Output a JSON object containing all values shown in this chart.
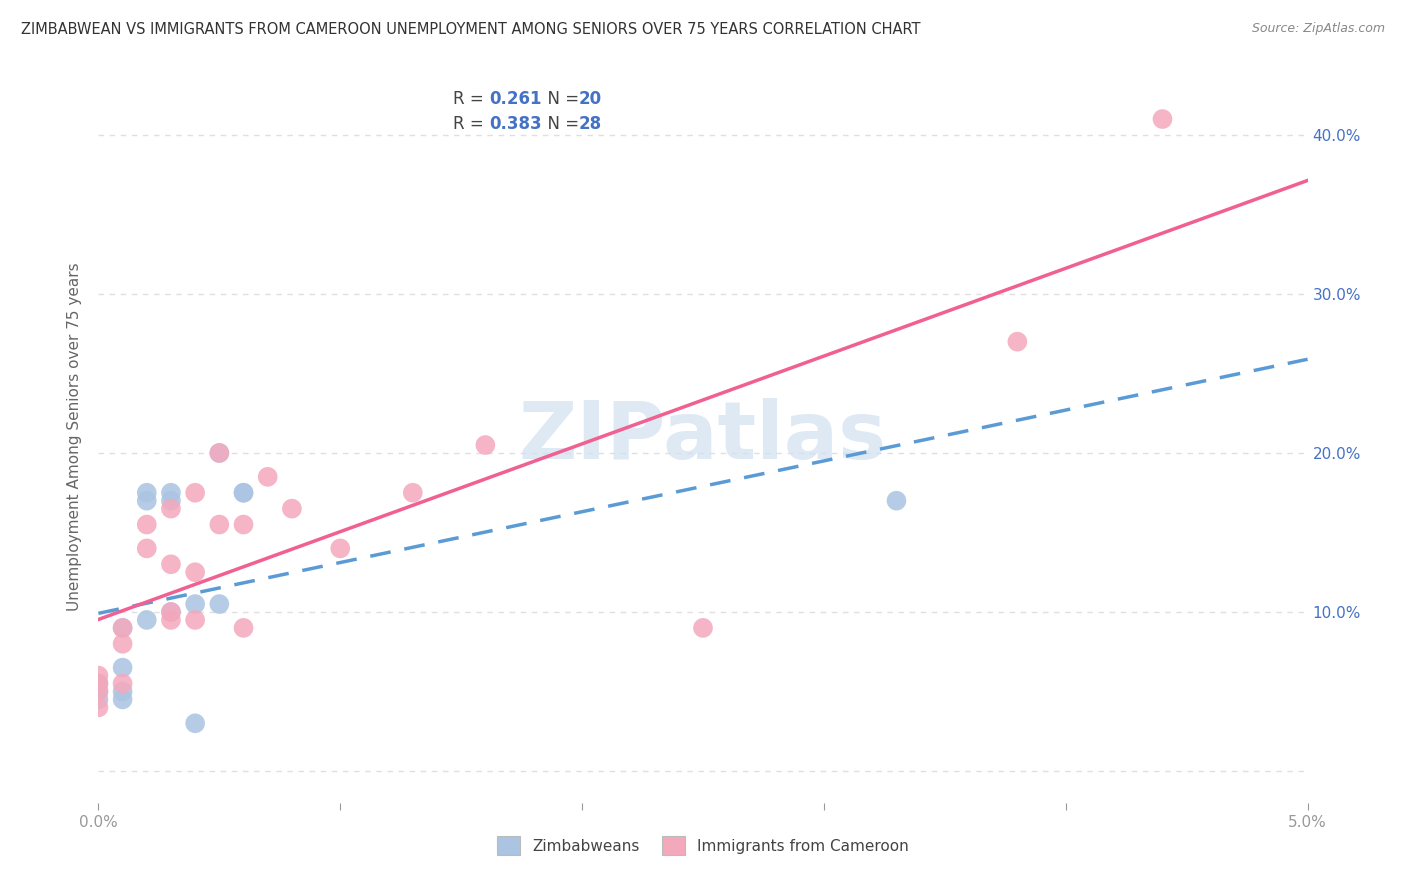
{
  "title": "ZIMBABWEAN VS IMMIGRANTS FROM CAMEROON UNEMPLOYMENT AMONG SENIORS OVER 75 YEARS CORRELATION CHART",
  "source": "Source: ZipAtlas.com",
  "ylabel": "Unemployment Among Seniors over 75 years",
  "xlim": [
    0.0,
    0.05
  ],
  "ylim": [
    -0.02,
    0.44
  ],
  "legend_label1": "Zimbabweans",
  "legend_label2": "Immigrants from Cameroon",
  "R1": 0.261,
  "N1": 20,
  "R2": 0.383,
  "N2": 28,
  "zim_color": "#aac4e2",
  "cam_color": "#f4a8bc",
  "zim_line_color": "#5b9bd5",
  "cam_line_color": "#f06090",
  "watermark_color": "#d0e0f0",
  "background_color": "#ffffff",
  "zimbabwean_x": [
    0.0,
    0.0,
    0.0,
    0.001,
    0.001,
    0.001,
    0.001,
    0.002,
    0.002,
    0.002,
    0.003,
    0.003,
    0.003,
    0.004,
    0.004,
    0.005,
    0.005,
    0.006,
    0.006,
    0.033
  ],
  "zimbabwean_y": [
    0.055,
    0.05,
    0.045,
    0.09,
    0.065,
    0.05,
    0.045,
    0.175,
    0.17,
    0.095,
    0.175,
    0.17,
    0.1,
    0.105,
    0.03,
    0.2,
    0.105,
    0.175,
    0.175,
    0.17
  ],
  "cameroon_x": [
    0.0,
    0.0,
    0.0,
    0.0,
    0.001,
    0.001,
    0.001,
    0.002,
    0.002,
    0.003,
    0.003,
    0.003,
    0.003,
    0.004,
    0.004,
    0.004,
    0.005,
    0.005,
    0.006,
    0.006,
    0.007,
    0.008,
    0.01,
    0.013,
    0.016,
    0.025,
    0.038,
    0.044
  ],
  "cameroon_y": [
    0.06,
    0.055,
    0.05,
    0.04,
    0.09,
    0.08,
    0.055,
    0.155,
    0.14,
    0.165,
    0.13,
    0.1,
    0.095,
    0.175,
    0.125,
    0.095,
    0.2,
    0.155,
    0.155,
    0.09,
    0.185,
    0.165,
    0.14,
    0.175,
    0.205,
    0.09,
    0.27,
    0.41
  ],
  "y_ticks": [
    0.0,
    0.1,
    0.2,
    0.3,
    0.4
  ],
  "y_tick_labels": [
    "",
    "10.0%",
    "20.0%",
    "30.0%",
    "40.0%"
  ],
  "x_ticks": [
    0.0,
    0.01,
    0.02,
    0.03,
    0.04,
    0.05
  ],
  "x_tick_labels_show": [
    "0.0%",
    "",
    "",
    "",
    "",
    "5.0%"
  ],
  "grid_color": "#e0e0e0",
  "tick_color": "#999999",
  "right_axis_color": "#4472c4"
}
